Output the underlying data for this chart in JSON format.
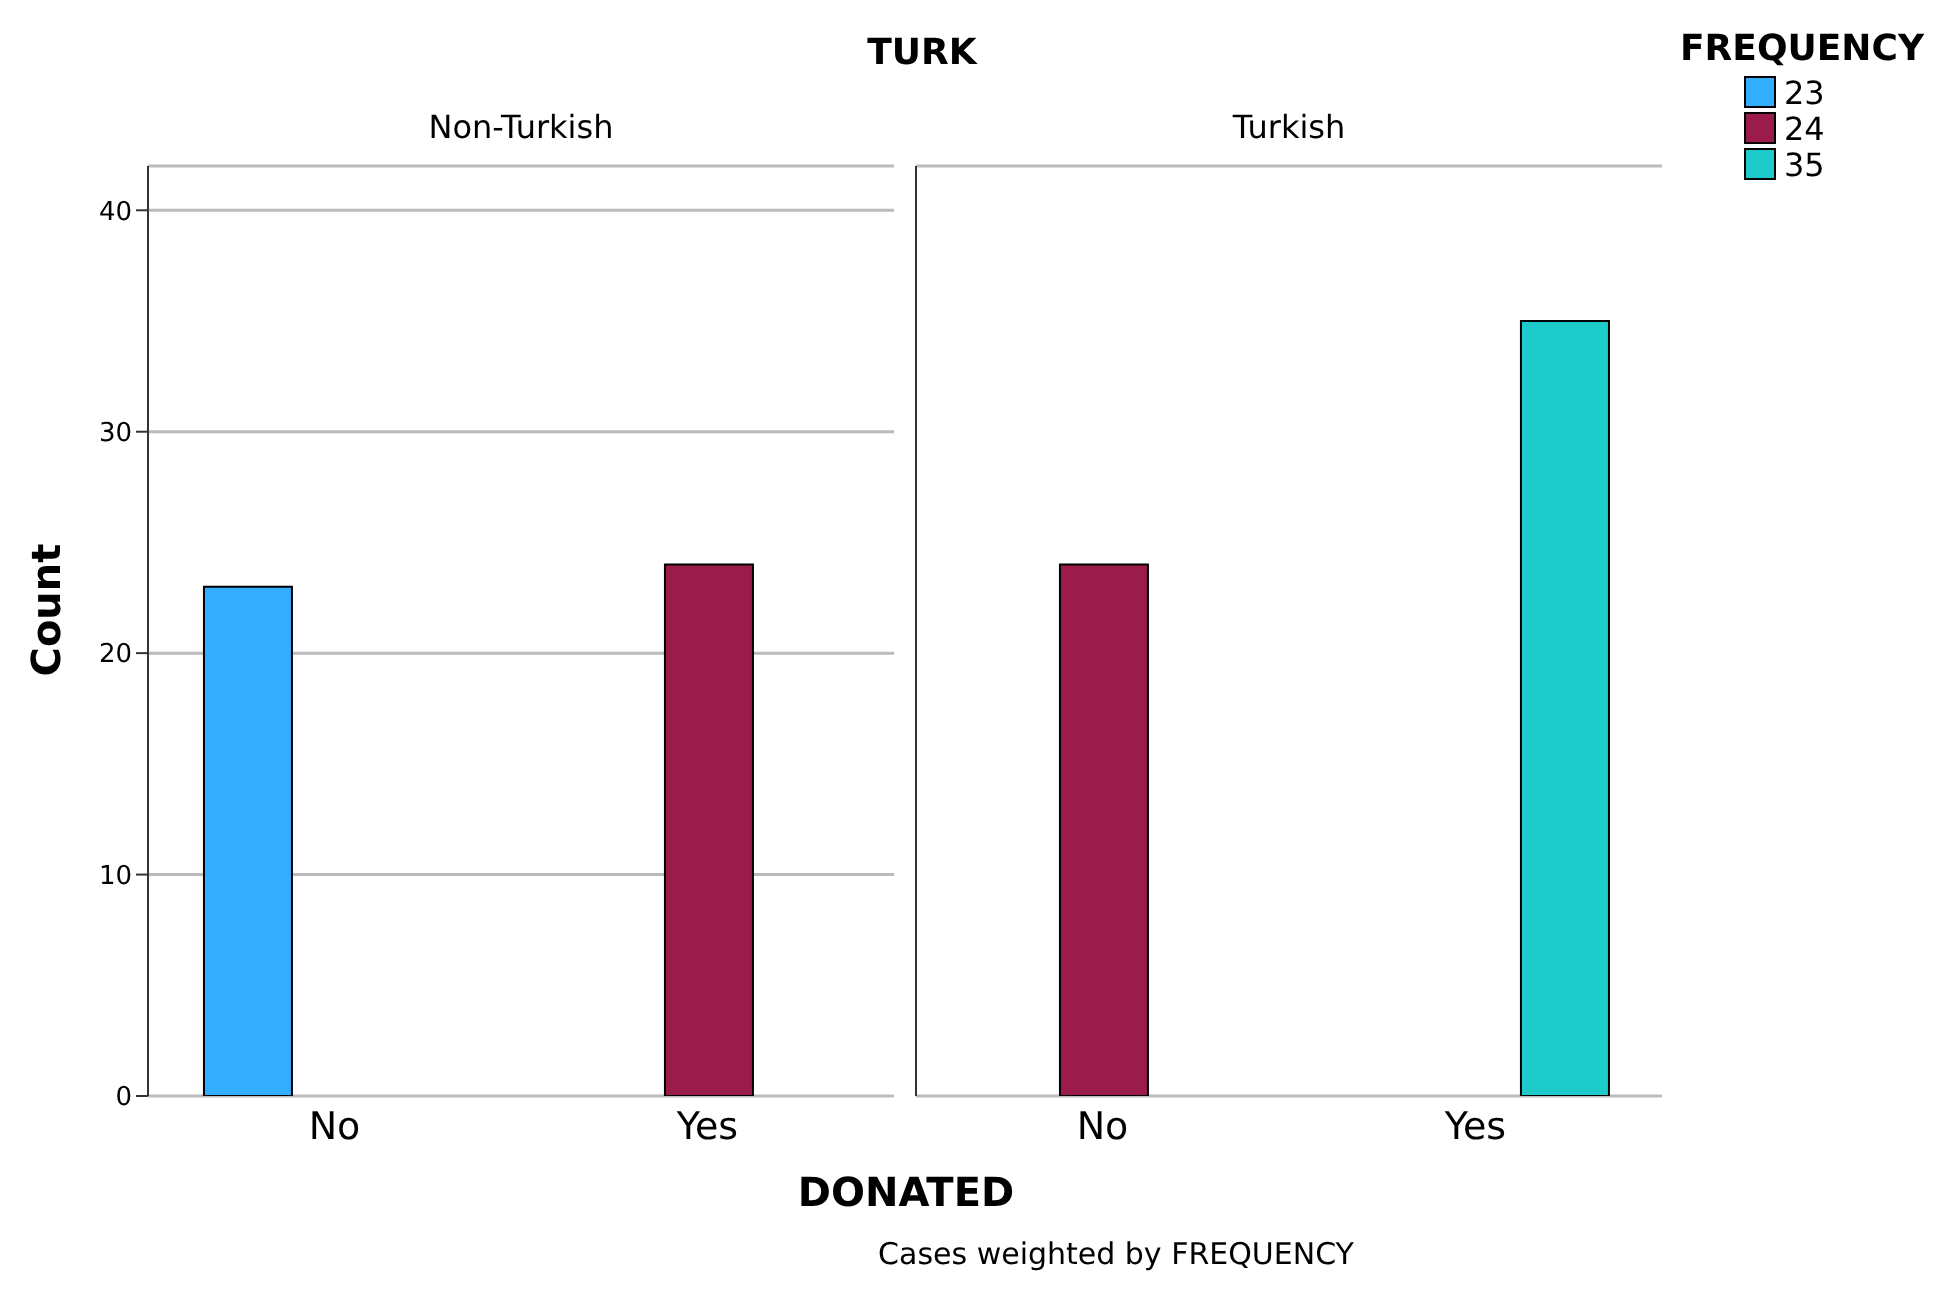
{
  "chart_data": [
    {
      "type": "bar",
      "title": "Non-Turkish",
      "categories": [
        "No",
        "Yes"
      ],
      "series": [
        {
          "color": "#33adff",
          "values": [
            23,
            0
          ]
        },
        {
          "color": "#9b1b4a",
          "values": [
            null,
            24
          ]
        },
        {
          "color": "#1dcbcb",
          "values": [
            0,
            null
          ]
        }
      ],
      "xlabel": "DONATED",
      "ylabel": "Count",
      "ylim": [
        0,
        42
      ],
      "yticks": [
        0,
        10,
        20,
        30,
        40
      ],
      "grid": "y",
      "legend": false,
      "annotations": [
        "TURK",
        "Cases weighted by FREQUENCY"
      ]
    },
    {
      "type": "bar",
      "title": "Turkish",
      "categories": [
        "No",
        "Yes"
      ],
      "series": [
        {
          "name": "23",
          "color": "#33adff",
          "values": [
            null,
            null
          ]
        },
        {
          "name": "24",
          "color": "#9b1b4a",
          "values": [
            24,
            null
          ]
        },
        {
          "name": "35",
          "color": "#1dcbcb",
          "values": [
            null,
            35
          ]
        }
      ],
      "ylim": [
        0,
        42
      ],
      "yticks": [
        0,
        10,
        20,
        30,
        40
      ],
      "grid": "y",
      "tick_labels": "x",
      "legend": "right",
      "legend_title": "FREQUENCY"
    }
  ]
}
